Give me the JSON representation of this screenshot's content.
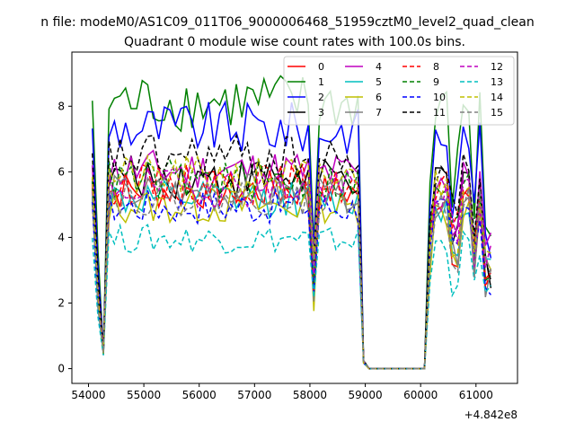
{
  "chart_data": {
    "type": "line",
    "suptitle": "n file: modeM0/AS1C09_011T06_9000006468_51959cztM0_level2_quad_clean",
    "title": "Quadrant 0 module wise count rates with 100.0s bins.",
    "xlabel": "",
    "ylabel": "",
    "x_offset_label": "+4.842e8",
    "xlim": [
      53700,
      61750
    ],
    "ylim": [
      -0.45,
      9.65
    ],
    "xticks": [
      54000,
      55000,
      56000,
      57000,
      58000,
      59000,
      60000,
      61000
    ],
    "yticks": [
      0,
      2,
      4,
      6,
      8
    ],
    "grid": false,
    "legend_position": "top-right",
    "legend_ncol": 4,
    "segments": [
      {
        "x_start": 54070,
        "x_end": 54270,
        "shape": [
          1.0,
          0.62,
          0.05
        ]
      },
      {
        "x_start": 54270,
        "x_end": 58000,
        "shape": "noisy_level"
      },
      {
        "x_start": 58000,
        "x_end": 58170,
        "shape": "dip"
      },
      {
        "x_start": 58170,
        "x_end": 58900,
        "shape": "noisy_level"
      },
      {
        "x_start": 58900,
        "x_end": 60070,
        "shape": "zero"
      },
      {
        "x_start": 60070,
        "x_end": 61350,
        "shape": "recovery_with_dips"
      }
    ],
    "series": [
      {
        "name": "0",
        "color": "#ff0000",
        "dash": "solid",
        "level": 5.5
      },
      {
        "name": "1",
        "color": "#008000",
        "dash": "solid",
        "level": 8.2
      },
      {
        "name": "2",
        "color": "#0000ff",
        "dash": "solid",
        "level": 7.4
      },
      {
        "name": "3",
        "color": "#000000",
        "dash": "solid",
        "level": 5.9
      },
      {
        "name": "4",
        "color": "#bf00bf",
        "dash": "solid",
        "level": 6.1
      },
      {
        "name": "5",
        "color": "#00bfbf",
        "dash": "solid",
        "level": 5.2
      },
      {
        "name": "6",
        "color": "#bfbf00",
        "dash": "solid",
        "level": 5.0
      },
      {
        "name": "7",
        "color": "#808080",
        "dash": "solid",
        "level": 5.4
      },
      {
        "name": "8",
        "color": "#ff0000",
        "dash": "dashed",
        "level": 5.7
      },
      {
        "name": "9",
        "color": "#008000",
        "dash": "dashed",
        "level": 5.8
      },
      {
        "name": "10",
        "color": "#0000ff",
        "dash": "dashed",
        "level": 5.0
      },
      {
        "name": "11",
        "color": "#000000",
        "dash": "dashed",
        "level": 6.5
      },
      {
        "name": "12",
        "color": "#bf00bf",
        "dash": "dashed",
        "level": 5.6
      },
      {
        "name": "13",
        "color": "#00bfbf",
        "dash": "dashed",
        "level": 4.0
      },
      {
        "name": "14",
        "color": "#bfbf00",
        "dash": "dashed",
        "level": 5.9
      },
      {
        "name": "15",
        "color": "#808080",
        "dash": "dashed",
        "level": 5.3
      }
    ]
  }
}
